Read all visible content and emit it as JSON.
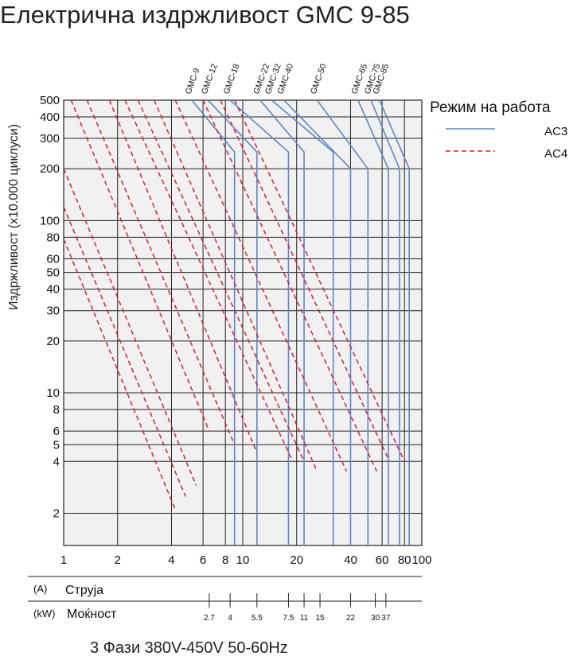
{
  "chart_data": {
    "type": "line",
    "title": "Електрична издржливост GMC 9-85",
    "ylabel": "Издржливост (x10.000 циклуси)",
    "x_scale": "log",
    "y_scale": "log",
    "xlim": [
      1,
      100
    ],
    "ylim": [
      1.3,
      500
    ],
    "x_ticks": [
      1,
      2,
      4,
      6,
      8,
      10,
      20,
      40,
      60,
      80,
      100
    ],
    "y_ticks": [
      2,
      4,
      5,
      6,
      8,
      10,
      20,
      30,
      40,
      50,
      60,
      80,
      100,
      200,
      300,
      400,
      500
    ],
    "legend": {
      "title": "Режим на работа",
      "position": "top-right",
      "entries": [
        {
          "label": "AC3",
          "color": "#5b86c8",
          "style": "solid"
        },
        {
          "label": "AC4",
          "color": "#d6203a",
          "style": "dashed"
        }
      ]
    },
    "models": [
      {
        "name": "GMC-9",
        "current": 9,
        "ac3": {
          "start": [
            5.2,
            500
          ],
          "knee": 250
        },
        "ac4": {
          "start": [
            1.1,
            500
          ],
          "end": [
            6.5,
            6
          ]
        }
      },
      {
        "name": "GMC-12",
        "current": 12,
        "ac3": {
          "start": [
            6.4,
            500
          ],
          "knee": 250
        },
        "ac4": {
          "start": [
            1.35,
            500
          ],
          "end": [
            9,
            5
          ]
        }
      },
      {
        "name": "GMC-18",
        "current": 18,
        "ac3": {
          "start": [
            8.5,
            500
          ],
          "knee": 250
        },
        "ac4": {
          "start": [
            1.8,
            500
          ],
          "end": [
            12,
            4.5
          ]
        }
      },
      {
        "name": "GMC-22",
        "current": 22,
        "ac3": {
          "start": [
            12.5,
            500
          ],
          "knee": 250
        },
        "ac4": {
          "start": [
            2.2,
            500
          ],
          "end": [
            19,
            4
          ]
        }
      },
      {
        "name": "GMC-32",
        "current": 32,
        "ac3": {
          "start": [
            14.5,
            500
          ],
          "knee": 250
        },
        "ac4": {
          "start": [
            2.6,
            500
          ],
          "end": [
            22,
            4
          ]
        }
      },
      {
        "name": "GMC-40",
        "current": 40,
        "ac3": {
          "start": [
            17,
            500
          ],
          "knee": 200
        },
        "ac4": {
          "start": [
            3.2,
            500
          ],
          "end": [
            26,
            3.5
          ]
        }
      },
      {
        "name": "GMC-50",
        "current": 50,
        "ac3": {
          "start": [
            26,
            500
          ],
          "knee": 200
        },
        "ac4": {
          "start": [
            4.2,
            500
          ],
          "end": [
            38,
            3.5
          ]
        }
      },
      {
        "name": "GMC-65",
        "current": 65,
        "ac3": {
          "start": [
            44,
            500
          ],
          "knee": 200
        },
        "ac4": {
          "start": [
            6,
            500
          ],
          "end": [
            56,
            3.5
          ]
        }
      },
      {
        "name": "GMC-75",
        "current": 75,
        "ac3": {
          "start": [
            52,
            500
          ],
          "knee": 200
        },
        "ac4": {
          "start": [
            7.5,
            500
          ],
          "end": [
            66,
            4
          ]
        }
      },
      {
        "name": "GMC-85",
        "current": 85,
        "ac3": {
          "start": [
            58,
            500
          ],
          "knee": 200
        },
        "ac4": {
          "start": [
            9,
            500
          ],
          "end": [
            80,
            4
          ]
        }
      }
    ],
    "extra_ac4": [
      {
        "start": [
          1,
          200
        ],
        "end": [
          5.5,
          2.9
        ]
      },
      {
        "start": [
          1,
          120
        ],
        "end": [
          4.8,
          2.5
        ]
      },
      {
        "start": [
          1,
          78
        ],
        "end": [
          4.2,
          2.1
        ]
      }
    ],
    "axis_rows": {
      "current_unit": "(A)",
      "current_label": "Струја",
      "power_unit": "(kW)",
      "power_label": "Моќност",
      "kw_ticks": [
        {
          "label": "2.7",
          "current": 6.5
        },
        {
          "label": "4",
          "current": 8.5
        },
        {
          "label": "5.5",
          "current": 12
        },
        {
          "label": "7.5",
          "current": 18
        },
        {
          "label": "11",
          "current": 22
        },
        {
          "label": "15",
          "current": 27
        },
        {
          "label": "22",
          "current": 40
        },
        {
          "label": "30",
          "current": 55
        },
        {
          "label": "37",
          "current": 63
        }
      ]
    },
    "footer": "3 Фази 380V-450V 50-60Hz"
  }
}
